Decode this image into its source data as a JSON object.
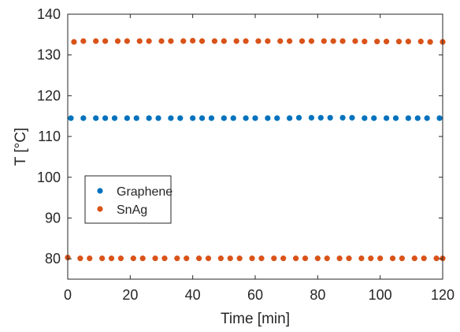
{
  "chart_data": {
    "type": "scatter",
    "title": "",
    "xlabel": "Time [min]",
    "ylabel": "T [°C]",
    "xlim": [
      0,
      120
    ],
    "ylim": [
      75,
      140
    ],
    "xticks": [
      0,
      20,
      40,
      60,
      80,
      100,
      120
    ],
    "yticks": [
      80,
      90,
      100,
      110,
      120,
      130,
      140
    ],
    "xtick_labels": [
      "0",
      "20",
      "40",
      "60",
      "80",
      "100",
      "120"
    ],
    "ytick_labels": [
      "80",
      "90",
      "100",
      "110",
      "120",
      "130",
      "140"
    ],
    "grid": false,
    "legend": {
      "placement": "center-left",
      "entries": [
        "Graphene",
        "SnAg"
      ]
    },
    "series": [
      {
        "name": "Graphene",
        "color": "#0072BD",
        "x": [
          1,
          5,
          9,
          12,
          15,
          19,
          22,
          26,
          29,
          33,
          36,
          40,
          43,
          46,
          50,
          53,
          57,
          60,
          64,
          67,
          71,
          74,
          78,
          81,
          84,
          88,
          91,
          95,
          98,
          102,
          105,
          109,
          112,
          115,
          119
        ],
        "y": [
          114.5,
          114.5,
          114.5,
          114.5,
          114.5,
          114.5,
          114.5,
          114.5,
          114.5,
          114.5,
          114.5,
          114.5,
          114.5,
          114.5,
          114.5,
          114.5,
          114.5,
          114.5,
          114.5,
          114.5,
          114.5,
          114.6,
          114.6,
          114.6,
          114.6,
          114.6,
          114.6,
          114.5,
          114.5,
          114.5,
          114.5,
          114.5,
          114.5,
          114.5,
          114.5
        ]
      },
      {
        "name": "SnAg",
        "color": "#D95319",
        "x": [
          2,
          5,
          9,
          12,
          16,
          19,
          23,
          26,
          30,
          33,
          37,
          40,
          43,
          47,
          50,
          54,
          57,
          61,
          64,
          68,
          71,
          75,
          78,
          82,
          85,
          88,
          92,
          95,
          99,
          102,
          106,
          109,
          113,
          116,
          120
        ],
        "y": [
          133.2,
          133.4,
          133.4,
          133.4,
          133.4,
          133.4,
          133.4,
          133.4,
          133.4,
          133.4,
          133.4,
          133.5,
          133.4,
          133.4,
          133.4,
          133.4,
          133.4,
          133.4,
          133.4,
          133.4,
          133.4,
          133.4,
          133.4,
          133.4,
          133.4,
          133.4,
          133.4,
          133.3,
          133.3,
          133.3,
          133.3,
          133.3,
          133.3,
          133.2,
          133.2
        ]
      },
      {
        "name": "SnAg",
        "color": "#D95319",
        "x": [
          0,
          4,
          7,
          11,
          14,
          17,
          21,
          24,
          28,
          31,
          35,
          38,
          42,
          45,
          49,
          52,
          55,
          59,
          62,
          66,
          69,
          73,
          76,
          80,
          83,
          87,
          90,
          94,
          97,
          100,
          104,
          107,
          111,
          114,
          118,
          120
        ],
        "y": [
          80.3,
          80.1,
          80.1,
          80.1,
          80.1,
          80.1,
          80.1,
          80.1,
          80.1,
          80.1,
          80.1,
          80.1,
          80.1,
          80.1,
          80.1,
          80.1,
          80.1,
          80.1,
          80.1,
          80.1,
          80.1,
          80.1,
          80.1,
          80.1,
          80.1,
          80.1,
          80.1,
          80.1,
          80.1,
          80.1,
          80.1,
          80.1,
          80.1,
          80.1,
          80.1,
          80.1
        ]
      }
    ]
  }
}
